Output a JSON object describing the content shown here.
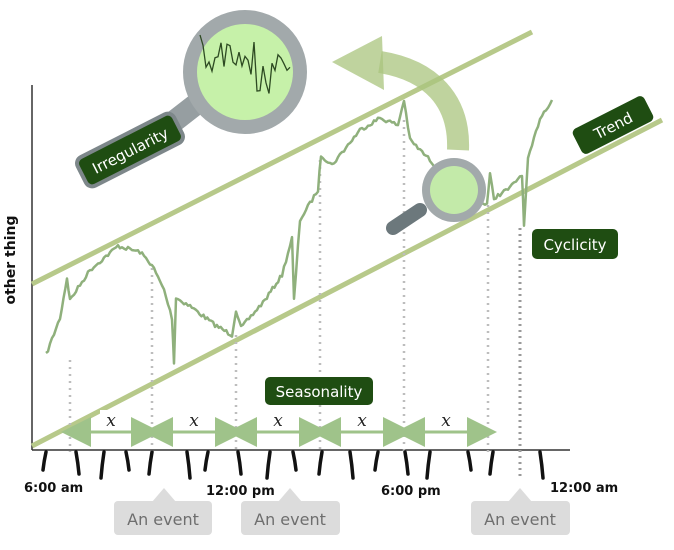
{
  "y_axis_label": "other thing",
  "labels": {
    "trend": "Trend",
    "irregularity": "Irregularity",
    "cyclicity": "Cyclicity",
    "seasonality": "Seasonality"
  },
  "period_marker": "x",
  "time_labels": [
    "6:00 am",
    "12:00 pm",
    "6:00 pm",
    "12:00 am"
  ],
  "events": [
    "An event",
    "An event",
    "An event"
  ],
  "colors": {
    "line": "#8fb07c",
    "band": "#b7c98a",
    "label_bg": "#1f4d12",
    "arrow_green": "#a9c47e",
    "magnifier_frame": "#a2a9ab",
    "magnifier_lens": "#c6f1a9",
    "event_bg": "#dcdcdc"
  }
}
